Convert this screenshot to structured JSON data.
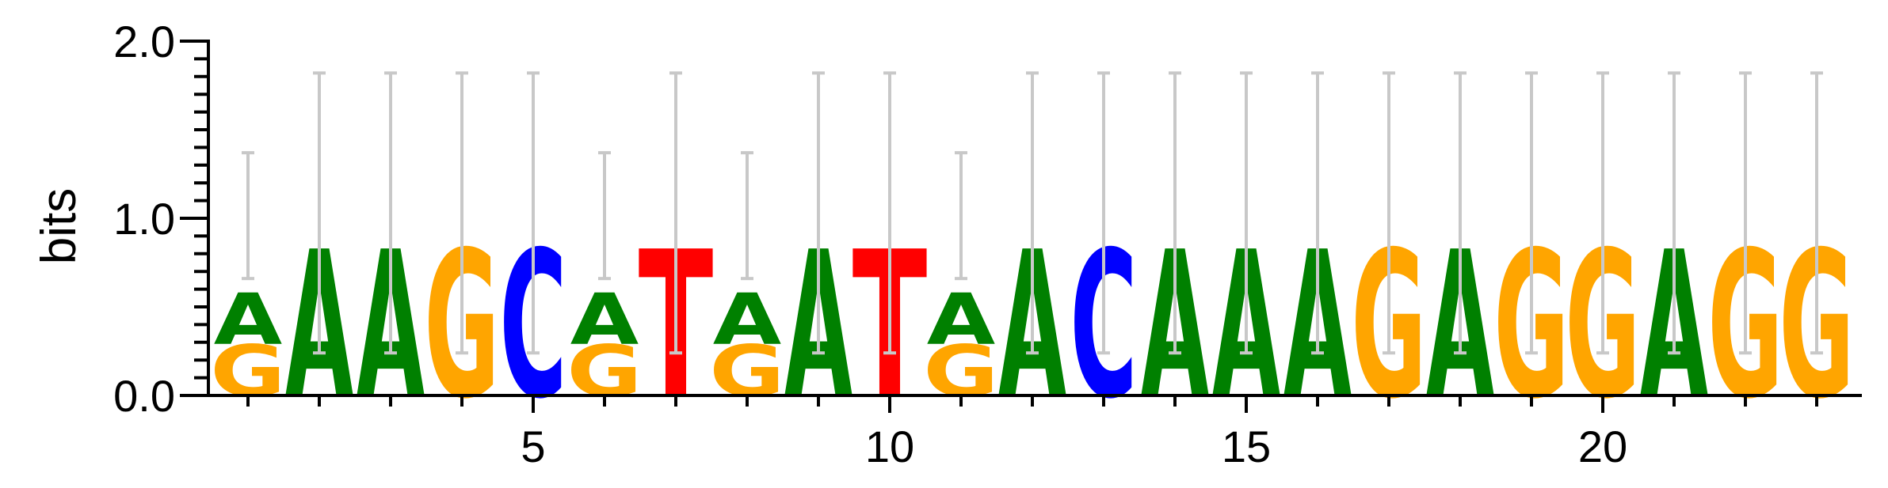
{
  "chart_data": {
    "type": "sequence-logo",
    "ylabel": "bits",
    "ylim": [
      0,
      2.0
    ],
    "y_ticks": [
      "0.0",
      "1.0",
      "2.0"
    ],
    "x_ticks": [
      5,
      10,
      15,
      20
    ],
    "colors": {
      "A": "#008000",
      "C": "#0000ff",
      "G": "#ffa500",
      "T": "#ff0000",
      "errorbar": "#c8c8c8"
    },
    "positions": [
      {
        "pos": 1,
        "letters": [
          {
            "base": "G",
            "bits": 0.29
          },
          {
            "base": "A",
            "bits": 0.29
          }
        ],
        "error_top": 1.37,
        "error_bottom": 0.66
      },
      {
        "pos": 2,
        "letters": [
          {
            "base": "A",
            "bits": 0.83
          }
        ],
        "error_top": 1.82,
        "error_bottom": 0.24
      },
      {
        "pos": 3,
        "letters": [
          {
            "base": "A",
            "bits": 0.83
          }
        ],
        "error_top": 1.82,
        "error_bottom": 0.24
      },
      {
        "pos": 4,
        "letters": [
          {
            "base": "G",
            "bits": 0.83
          }
        ],
        "error_top": 1.82,
        "error_bottom": 0.24
      },
      {
        "pos": 5,
        "letters": [
          {
            "base": "C",
            "bits": 0.83
          }
        ],
        "error_top": 1.82,
        "error_bottom": 0.24
      },
      {
        "pos": 6,
        "letters": [
          {
            "base": "G",
            "bits": 0.29
          },
          {
            "base": "A",
            "bits": 0.29
          }
        ],
        "error_top": 1.37,
        "error_bottom": 0.66
      },
      {
        "pos": 7,
        "letters": [
          {
            "base": "T",
            "bits": 0.83
          }
        ],
        "error_top": 1.82,
        "error_bottom": 0.24
      },
      {
        "pos": 8,
        "letters": [
          {
            "base": "G",
            "bits": 0.29
          },
          {
            "base": "A",
            "bits": 0.29
          }
        ],
        "error_top": 1.37,
        "error_bottom": 0.66
      },
      {
        "pos": 9,
        "letters": [
          {
            "base": "A",
            "bits": 0.83
          }
        ],
        "error_top": 1.82,
        "error_bottom": 0.24
      },
      {
        "pos": 10,
        "letters": [
          {
            "base": "T",
            "bits": 0.83
          }
        ],
        "error_top": 1.82,
        "error_bottom": 0.24
      },
      {
        "pos": 11,
        "letters": [
          {
            "base": "G",
            "bits": 0.29
          },
          {
            "base": "A",
            "bits": 0.29
          }
        ],
        "error_top": 1.37,
        "error_bottom": 0.66
      },
      {
        "pos": 12,
        "letters": [
          {
            "base": "A",
            "bits": 0.83
          }
        ],
        "error_top": 1.82,
        "error_bottom": 0.24
      },
      {
        "pos": 13,
        "letters": [
          {
            "base": "C",
            "bits": 0.83
          }
        ],
        "error_top": 1.82,
        "error_bottom": 0.24
      },
      {
        "pos": 14,
        "letters": [
          {
            "base": "A",
            "bits": 0.83
          }
        ],
        "error_top": 1.82,
        "error_bottom": 0.24
      },
      {
        "pos": 15,
        "letters": [
          {
            "base": "A",
            "bits": 0.83
          }
        ],
        "error_top": 1.82,
        "error_bottom": 0.24
      },
      {
        "pos": 16,
        "letters": [
          {
            "base": "A",
            "bits": 0.83
          }
        ],
        "error_top": 1.82,
        "error_bottom": 0.24
      },
      {
        "pos": 17,
        "letters": [
          {
            "base": "G",
            "bits": 0.83
          }
        ],
        "error_top": 1.82,
        "error_bottom": 0.24
      },
      {
        "pos": 18,
        "letters": [
          {
            "base": "A",
            "bits": 0.83
          }
        ],
        "error_top": 1.82,
        "error_bottom": 0.24
      },
      {
        "pos": 19,
        "letters": [
          {
            "base": "G",
            "bits": 0.83
          }
        ],
        "error_top": 1.82,
        "error_bottom": 0.24
      },
      {
        "pos": 20,
        "letters": [
          {
            "base": "G",
            "bits": 0.83
          }
        ],
        "error_top": 1.82,
        "error_bottom": 0.24
      },
      {
        "pos": 21,
        "letters": [
          {
            "base": "A",
            "bits": 0.83
          }
        ],
        "error_top": 1.82,
        "error_bottom": 0.24
      },
      {
        "pos": 22,
        "letters": [
          {
            "base": "G",
            "bits": 0.83
          }
        ],
        "error_top": 1.82,
        "error_bottom": 0.24
      },
      {
        "pos": 23,
        "letters": [
          {
            "base": "G",
            "bits": 0.83
          }
        ],
        "error_top": 1.82,
        "error_bottom": 0.24
      }
    ]
  }
}
